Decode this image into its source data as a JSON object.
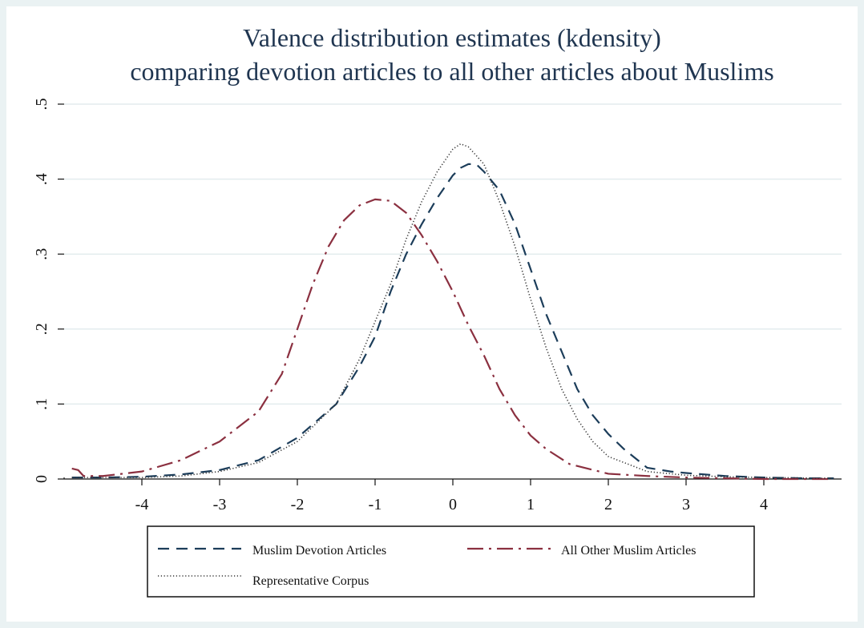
{
  "chart_data": {
    "type": "line",
    "title_lines": [
      "Valence distribution estimates (kdensity)",
      "comparing devotion articles to all other articles about Muslims"
    ],
    "xlabel": "",
    "ylabel": "",
    "xlim": [
      -5.0,
      5.0
    ],
    "ylim": [
      0,
      0.5
    ],
    "x_ticks": [
      -4,
      -3,
      -2,
      -1,
      0,
      1,
      2,
      3,
      4
    ],
    "x_tick_labels": [
      "-4",
      "-3",
      "-2",
      "-1",
      "0",
      "1",
      "2",
      "3",
      "4"
    ],
    "y_ticks": [
      0,
      0.1,
      0.2,
      0.3,
      0.4,
      0.5
    ],
    "y_tick_labels": [
      "0",
      ".1",
      ".2",
      ".3",
      ".4",
      ".5"
    ],
    "grid": true,
    "legend_position": "bottom",
    "series": [
      {
        "name": "Muslim Devotion Articles",
        "color": "#1c3d5a",
        "dash": "dashed",
        "x": [
          -4.9,
          -4.5,
          -4.0,
          -3.5,
          -3.0,
          -2.5,
          -2.0,
          -1.5,
          -1.2,
          -1.0,
          -0.8,
          -0.6,
          -0.4,
          -0.2,
          0.0,
          0.1,
          0.2,
          0.3,
          0.4,
          0.6,
          0.8,
          1.0,
          1.2,
          1.4,
          1.6,
          1.8,
          2.0,
          2.2,
          2.5,
          2.8,
          3.0,
          3.5,
          4.0,
          4.5,
          4.9
        ],
        "y": [
          0.002,
          0.002,
          0.003,
          0.006,
          0.012,
          0.025,
          0.055,
          0.1,
          0.15,
          0.19,
          0.25,
          0.3,
          0.34,
          0.375,
          0.405,
          0.415,
          0.42,
          0.42,
          0.41,
          0.385,
          0.34,
          0.28,
          0.22,
          0.17,
          0.12,
          0.085,
          0.06,
          0.04,
          0.015,
          0.01,
          0.008,
          0.004,
          0.002,
          0.001,
          0.001
        ]
      },
      {
        "name": "All Other Muslim Articles",
        "color": "#8b3040",
        "dash": "dashdot",
        "x": [
          -4.9,
          -4.82,
          -4.75,
          -4.6,
          -4.5,
          -4.0,
          -3.5,
          -3.0,
          -2.5,
          -2.2,
          -2.0,
          -1.8,
          -1.6,
          -1.4,
          -1.2,
          -1.0,
          -0.8,
          -0.6,
          -0.4,
          -0.2,
          0.0,
          0.2,
          0.4,
          0.6,
          0.8,
          1.0,
          1.2,
          1.5,
          2.0,
          2.5,
          3.0,
          3.5,
          4.0,
          4.5,
          4.9
        ],
        "y": [
          0.014,
          0.012,
          0.004,
          0.004,
          0.004,
          0.01,
          0.025,
          0.05,
          0.09,
          0.14,
          0.2,
          0.26,
          0.31,
          0.345,
          0.365,
          0.373,
          0.371,
          0.355,
          0.325,
          0.29,
          0.25,
          0.205,
          0.165,
          0.12,
          0.085,
          0.058,
          0.04,
          0.02,
          0.007,
          0.004,
          0.002,
          0.001,
          0.0,
          0.0,
          0.0
        ]
      },
      {
        "name": "Representative Corpus",
        "color": "#333333",
        "dash": "dotted",
        "x": [
          -4.9,
          -4.5,
          -4.0,
          -3.5,
          -3.0,
          -2.5,
          -2.0,
          -1.5,
          -1.2,
          -1.0,
          -0.8,
          -0.6,
          -0.4,
          -0.2,
          0.0,
          0.1,
          0.2,
          0.4,
          0.6,
          0.8,
          1.0,
          1.2,
          1.4,
          1.6,
          1.8,
          2.0,
          2.5,
          3.0,
          3.5,
          4.0,
          4.9
        ],
        "y": [
          0.002,
          0.002,
          0.002,
          0.004,
          0.01,
          0.022,
          0.05,
          0.1,
          0.16,
          0.21,
          0.26,
          0.32,
          0.37,
          0.41,
          0.44,
          0.447,
          0.443,
          0.42,
          0.37,
          0.31,
          0.24,
          0.175,
          0.12,
          0.08,
          0.05,
          0.03,
          0.01,
          0.005,
          0.003,
          0.002,
          0.001
        ]
      }
    ]
  }
}
